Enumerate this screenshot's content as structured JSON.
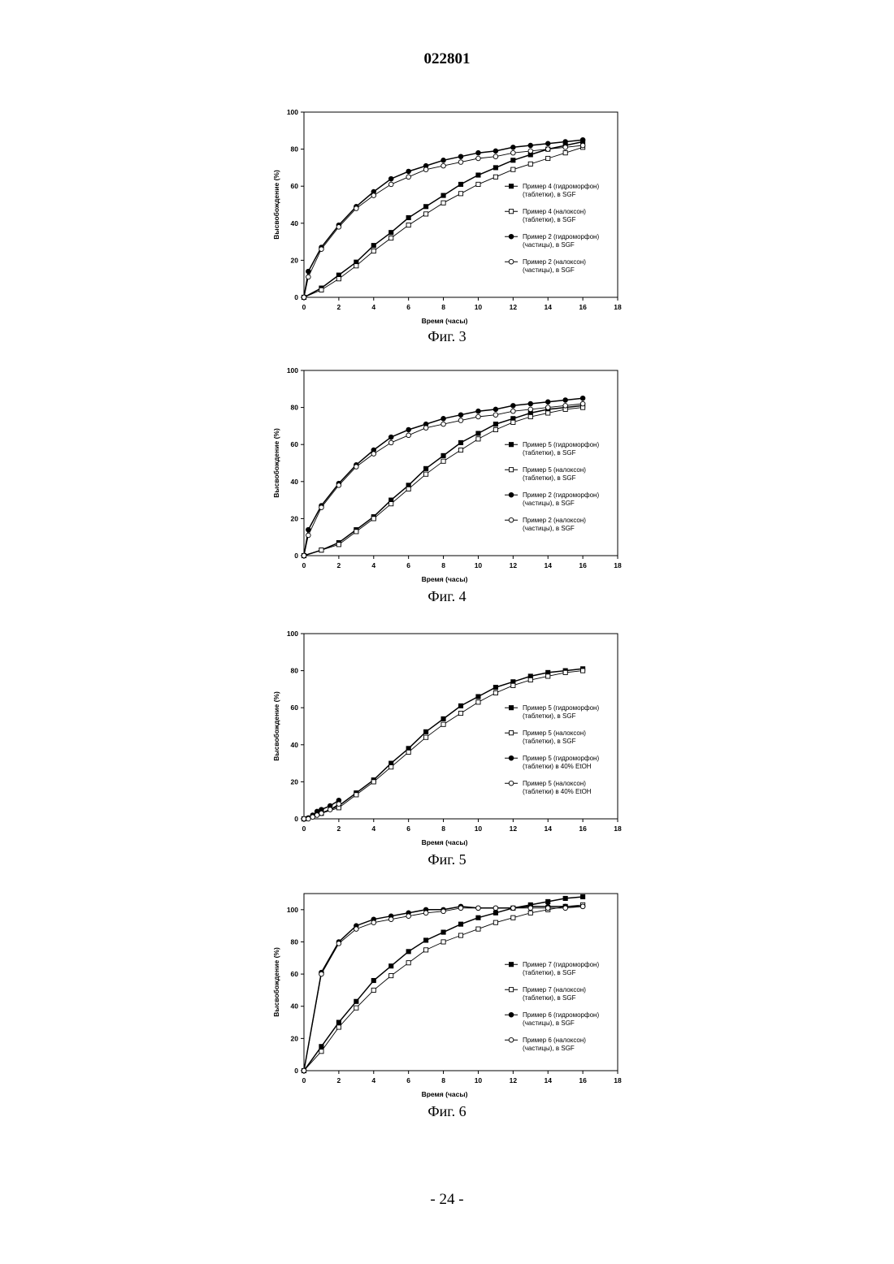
{
  "page": {
    "number": "022801",
    "footer": "- 24 -"
  },
  "colors": {
    "line": "#000000",
    "open_fill": "#ffffff"
  },
  "figures": [
    {
      "caption": "Фиг. 3",
      "chart_data": {
        "type": "line",
        "xlabel": "Время (часы)",
        "ylabel": "Высвобождение (%)",
        "xlim": [
          0,
          18
        ],
        "ylim": [
          0,
          100
        ],
        "xticks": [
          0,
          2,
          4,
          6,
          8,
          10,
          12,
          14,
          16,
          18
        ],
        "yticks": [
          0,
          20,
          40,
          60,
          80,
          100
        ],
        "legend_position": "right",
        "series": [
          {
            "name": "Пример 4 (гидроморфон) (таблетки), в SGF",
            "marker": "square-filled",
            "x": [
              0,
              1,
              2,
              3,
              4,
              5,
              6,
              7,
              8,
              9,
              10,
              11,
              12,
              13,
              14,
              15,
              16
            ],
            "y": [
              0,
              5,
              12,
              19,
              28,
              35,
              43,
              49,
              55,
              61,
              66,
              70,
              74,
              77,
              80,
              82,
              84
            ]
          },
          {
            "name": "Пример 4 (налоксон) (таблетки), в SGF",
            "marker": "square-open",
            "x": [
              0,
              1,
              2,
              3,
              4,
              5,
              6,
              7,
              8,
              9,
              10,
              11,
              12,
              13,
              14,
              15,
              16
            ],
            "y": [
              0,
              4,
              10,
              17,
              25,
              32,
              39,
              45,
              51,
              56,
              61,
              65,
              69,
              72,
              75,
              78,
              81
            ]
          },
          {
            "name": "Пример 2 (гидроморфон) (частицы), в SGF",
            "marker": "circle-filled",
            "x": [
              0,
              0.25,
              1,
              2,
              3,
              4,
              5,
              6,
              7,
              8,
              9,
              10,
              11,
              12,
              13,
              14,
              15,
              16
            ],
            "y": [
              0,
              14,
              27,
              39,
              49,
              57,
              64,
              68,
              71,
              74,
              76,
              78,
              79,
              81,
              82,
              83,
              84,
              85
            ]
          },
          {
            "name": "Пример 2 (налоксон) (частицы), в SGF",
            "marker": "circle-open",
            "x": [
              0,
              0.25,
              1,
              2,
              3,
              4,
              5,
              6,
              7,
              8,
              9,
              10,
              11,
              12,
              13,
              14,
              15,
              16
            ],
            "y": [
              0,
              11,
              26,
              38,
              48,
              55,
              61,
              65,
              69,
              71,
              73,
              75,
              76,
              78,
              79,
              80,
              81,
              82
            ]
          }
        ]
      }
    },
    {
      "caption": "Фиг. 4",
      "chart_data": {
        "type": "line",
        "xlabel": "Время (часы)",
        "ylabel": "Высвобождение (%)",
        "xlim": [
          0,
          18
        ],
        "ylim": [
          0,
          100
        ],
        "xticks": [
          0,
          2,
          4,
          6,
          8,
          10,
          12,
          14,
          16,
          18
        ],
        "yticks": [
          0,
          20,
          40,
          60,
          80,
          100
        ],
        "legend_position": "right",
        "series": [
          {
            "name": "Пример 5 (гидроморфон) (таблетки), в SGF",
            "marker": "square-filled",
            "x": [
              0,
              1,
              2,
              3,
              4,
              5,
              6,
              7,
              8,
              9,
              10,
              11,
              12,
              13,
              14,
              15,
              16
            ],
            "y": [
              0,
              3,
              7,
              14,
              21,
              30,
              38,
              47,
              54,
              61,
              66,
              71,
              74,
              77,
              79,
              80,
              81
            ]
          },
          {
            "name": "Пример 5 (налоксон) (таблетки), в SGF",
            "marker": "square-open",
            "x": [
              0,
              1,
              2,
              3,
              4,
              5,
              6,
              7,
              8,
              9,
              10,
              11,
              12,
              13,
              14,
              15,
              16
            ],
            "y": [
              0,
              3,
              6,
              13,
              20,
              28,
              36,
              44,
              51,
              57,
              63,
              68,
              72,
              75,
              77,
              79,
              80
            ]
          },
          {
            "name": "Пример 2 (гидроморфон) (частицы), в SGF",
            "marker": "circle-filled",
            "x": [
              0,
              0.25,
              1,
              2,
              3,
              4,
              5,
              6,
              7,
              8,
              9,
              10,
              11,
              12,
              13,
              14,
              15,
              16
            ],
            "y": [
              0,
              14,
              27,
              39,
              49,
              57,
              64,
              68,
              71,
              74,
              76,
              78,
              79,
              81,
              82,
              83,
              84,
              85
            ]
          },
          {
            "name": "Пример 2 (налоксон) (частицы), в SGF",
            "marker": "circle-open",
            "x": [
              0,
              0.25,
              1,
              2,
              3,
              4,
              5,
              6,
              7,
              8,
              9,
              10,
              11,
              12,
              13,
              14,
              15,
              16
            ],
            "y": [
              0,
              11,
              26,
              38,
              48,
              55,
              61,
              65,
              69,
              71,
              73,
              75,
              76,
              78,
              79,
              80,
              81,
              82
            ]
          }
        ]
      }
    },
    {
      "caption": "Фиг. 5",
      "chart_data": {
        "type": "line",
        "xlabel": "Время (часы)",
        "ylabel": "Высвобождение (%)",
        "xlim": [
          0,
          18
        ],
        "ylim": [
          0,
          100
        ],
        "xticks": [
          0,
          2,
          4,
          6,
          8,
          10,
          12,
          14,
          16,
          18
        ],
        "yticks": [
          0,
          20,
          40,
          60,
          80,
          100
        ],
        "legend_position": "right",
        "series": [
          {
            "name": "Пример 5 (гидроморфон) (таблетки), в SGF",
            "marker": "square-filled",
            "x": [
              0,
              1,
              2,
              3,
              4,
              5,
              6,
              7,
              8,
              9,
              10,
              11,
              12,
              13,
              14,
              15,
              16
            ],
            "y": [
              0,
              3,
              7,
              14,
              21,
              30,
              38,
              47,
              54,
              61,
              66,
              71,
              74,
              77,
              79,
              80,
              81
            ]
          },
          {
            "name": "Пример 5 (налоксон) (таблетки), в SGF",
            "marker": "square-open",
            "x": [
              0,
              1,
              2,
              3,
              4,
              5,
              6,
              7,
              8,
              9,
              10,
              11,
              12,
              13,
              14,
              15,
              16
            ],
            "y": [
              0,
              3,
              6,
              13,
              20,
              28,
              36,
              44,
              51,
              57,
              63,
              68,
              72,
              75,
              77,
              79,
              80
            ]
          },
          {
            "name": "Пример 5 (гидроморфон) (таблетки) в 40% EtOH",
            "marker": "circle-filled",
            "x": [
              0,
              0.25,
              0.5,
              0.75,
              1,
              1.5,
              2
            ],
            "y": [
              0,
              0.5,
              2,
              4,
              5,
              7,
              10
            ]
          },
          {
            "name": "Пример 5 (налоксон) (таблетки) в 40% EtOH",
            "marker": "circle-open",
            "x": [
              0,
              0.25,
              0.5,
              0.75,
              1,
              1.5,
              2
            ],
            "y": [
              0,
              0,
              1,
              2,
              3,
              5,
              8
            ]
          }
        ]
      }
    },
    {
      "caption": "Фиг. 6",
      "chart_data": {
        "type": "line",
        "xlabel": "Время (часы)",
        "ylabel": "Высвобождение (%)",
        "xlim": [
          0,
          18
        ],
        "ylim": [
          0,
          110
        ],
        "xticks": [
          0,
          2,
          4,
          6,
          8,
          10,
          12,
          14,
          16,
          18
        ],
        "yticks": [
          0,
          20,
          40,
          60,
          80,
          100
        ],
        "legend_position": "right",
        "series": [
          {
            "name": "Пример 7 (гидроморфон) (таблетки), в SGF",
            "marker": "square-filled",
            "x": [
              0,
              1,
              2,
              3,
              4,
              5,
              6,
              7,
              8,
              9,
              10,
              11,
              12,
              13,
              14,
              15,
              16
            ],
            "y": [
              0,
              15,
              30,
              43,
              56,
              65,
              74,
              81,
              86,
              91,
              95,
              98,
              101,
              103,
              105,
              107,
              108
            ]
          },
          {
            "name": "Пример 7 (налоксон) (таблетки), в SGF",
            "marker": "square-open",
            "x": [
              0,
              1,
              2,
              3,
              4,
              5,
              6,
              7,
              8,
              9,
              10,
              11,
              12,
              13,
              14,
              15,
              16
            ],
            "y": [
              0,
              12,
              27,
              39,
              50,
              59,
              67,
              75,
              80,
              84,
              88,
              92,
              95,
              98,
              100,
              102,
              103
            ]
          },
          {
            "name": "Пример 6 (гидроморфон) (частицы), в SGF",
            "marker": "circle-filled",
            "x": [
              0,
              1,
              2,
              3,
              4,
              5,
              6,
              7,
              8,
              9,
              10,
              11,
              12,
              13,
              14,
              15,
              16
            ],
            "y": [
              0,
              61,
              80,
              90,
              94,
              96,
              98,
              100,
              100,
              102,
              101,
              101,
              101,
              102,
              102,
              102,
              102
            ]
          },
          {
            "name": "Пример 6 (налоксон) (частицы), в SGF",
            "marker": "circle-open",
            "x": [
              0,
              1,
              2,
              3,
              4,
              5,
              6,
              7,
              8,
              9,
              10,
              11,
              12,
              13,
              14,
              15,
              16
            ],
            "y": [
              0,
              60,
              79,
              88,
              92,
              94,
              96,
              98,
              99,
              101,
              101,
              101,
              101,
              101,
              101,
              101,
              102
            ]
          }
        ]
      }
    }
  ]
}
